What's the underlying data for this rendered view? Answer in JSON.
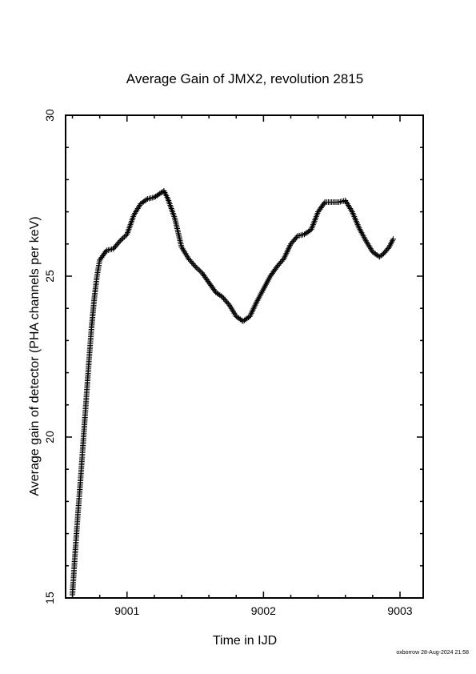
{
  "chart_data": {
    "type": "scatter",
    "title": "Average Gain of JMX2, revolution 2815",
    "xlabel": "Time in IJD",
    "ylabel": "Average gain of detector (PHA channels per keV)",
    "xlim": [
      9000.55,
      9003.17
    ],
    "ylim": [
      15,
      30
    ],
    "xticks": [
      "9001",
      "9002",
      "9003"
    ],
    "yticks": [
      "15",
      "20",
      "25",
      "30"
    ],
    "marker": "+",
    "color": "#000000",
    "grid": false,
    "series": [
      {
        "x": [
          9000.6,
          9000.62,
          9000.64,
          9000.66,
          9000.68,
          9000.7,
          9000.72,
          9000.74,
          9000.76,
          9000.78,
          9000.8,
          9000.85,
          9000.9,
          9000.95,
          9001.0,
          9001.05,
          9001.1,
          9001.15,
          9001.2,
          9001.27,
          9001.3,
          9001.35,
          9001.4,
          9001.45,
          9001.5,
          9001.55,
          9001.6,
          9001.65,
          9001.7,
          9001.75,
          9001.8,
          9001.85,
          9001.9,
          9001.95,
          9002.0,
          9002.05,
          9002.1,
          9002.15,
          9002.2,
          9002.25,
          9002.3,
          9002.35,
          9002.4,
          9002.45,
          9002.5,
          9002.55,
          9002.6,
          9002.65,
          9002.7,
          9002.75,
          9002.8,
          9002.85,
          9002.88,
          9002.92,
          9002.95
        ],
        "y": [
          15.1,
          16.4,
          17.6,
          18.7,
          19.9,
          21.1,
          22.3,
          23.4,
          24.3,
          25.0,
          25.5,
          25.8,
          25.85,
          26.1,
          26.3,
          26.9,
          27.25,
          27.4,
          27.45,
          27.65,
          27.4,
          26.8,
          25.9,
          25.55,
          25.3,
          25.1,
          24.8,
          24.5,
          24.35,
          24.1,
          23.75,
          23.6,
          23.75,
          24.2,
          24.6,
          25.0,
          25.3,
          25.55,
          26.0,
          26.25,
          26.3,
          26.45,
          27.0,
          27.3,
          27.3,
          27.3,
          27.35,
          27.0,
          26.5,
          26.1,
          25.75,
          25.6,
          25.7,
          25.9,
          26.15
        ]
      }
    ]
  },
  "footer": "oxborrow 28-Aug-2024 21:58"
}
